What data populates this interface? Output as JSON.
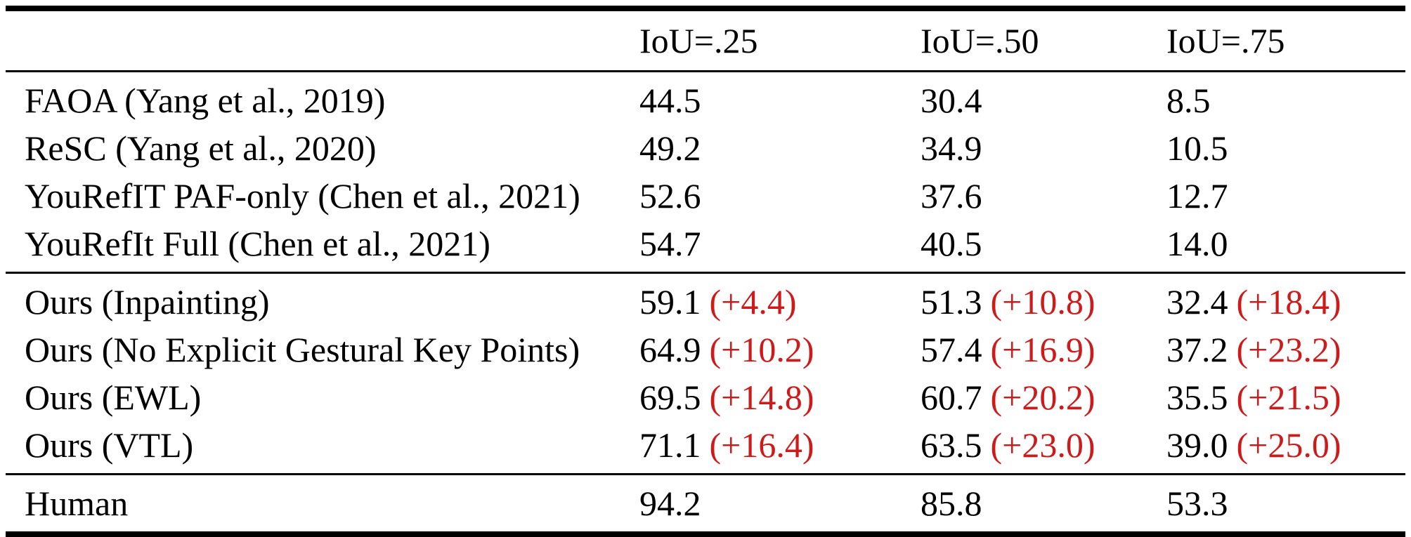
{
  "table": {
    "header": {
      "iou25": "IoU=.25",
      "iou50": "IoU=.50",
      "iou75": "IoU=.75"
    },
    "baseline_rows": [
      {
        "method": "FAOA (Yang et al., 2019)",
        "iou25": "44.5",
        "iou50": "30.4",
        "iou75": "8.5"
      },
      {
        "method": "ReSC (Yang et al., 2020)",
        "iou25": "49.2",
        "iou50": "34.9",
        "iou75": "10.5"
      },
      {
        "method": "YouRefIT PAF-only (Chen et al., 2021)",
        "iou25": "52.6",
        "iou50": "37.6",
        "iou75": "12.7"
      },
      {
        "method": "YouRefIt Full (Chen et al., 2021)",
        "iou25": "54.7",
        "iou50": "40.5",
        "iou75": "14.0"
      }
    ],
    "ours_rows": [
      {
        "method": "Ours (Inpainting)",
        "iou25": {
          "value": "59.1",
          "delta": "(+4.4)"
        },
        "iou50": {
          "value": "51.3",
          "delta": "(+10.8)"
        },
        "iou75": {
          "value": "32.4",
          "delta": "(+18.4)"
        }
      },
      {
        "method": "Ours (No Explicit Gestural Key Points)",
        "iou25": {
          "value": "64.9",
          "delta": "(+10.2)"
        },
        "iou50": {
          "value": "57.4",
          "delta": "(+16.9)"
        },
        "iou75": {
          "value": "37.2",
          "delta": "(+23.2)"
        }
      },
      {
        "method": "Ours (EWL)",
        "iou25": {
          "value": "69.5",
          "delta": "(+14.8)"
        },
        "iou50": {
          "value": "60.7",
          "delta": "(+20.2)"
        },
        "iou75": {
          "value": "35.5",
          "delta": "(+21.5)"
        }
      },
      {
        "method": "Ours (VTL)",
        "iou25": {
          "value": "71.1",
          "delta": "(+16.4)"
        },
        "iou50": {
          "value": "63.5",
          "delta": "(+23.0)"
        },
        "iou75": {
          "value": "39.0",
          "delta": "(+25.0)"
        }
      }
    ],
    "human_row": {
      "method": "Human",
      "iou25": "94.2",
      "iou50": "85.8",
      "iou75": "53.3"
    }
  },
  "colors": {
    "text": "#000000",
    "delta_red": "#cd1b1b",
    "rule": "#000000",
    "background": "#ffffff"
  }
}
